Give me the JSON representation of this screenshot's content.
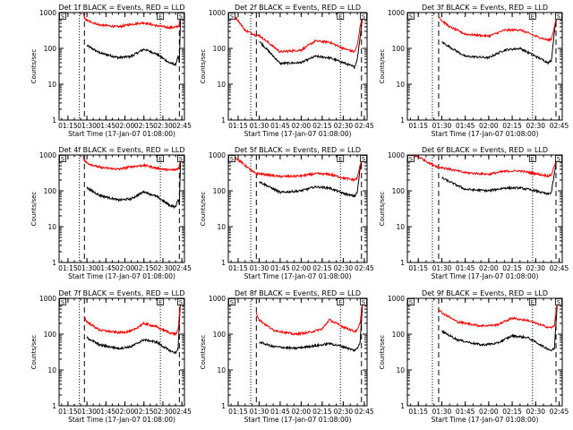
{
  "colors": {
    "events": "#000000",
    "lld": "#ff0000",
    "axis": "#000000",
    "background": "#ffffff"
  },
  "shared": {
    "xlabel": "Start Time (17-Jan-07 01:08:00)",
    "ylabel": "Counts/sec",
    "yscale": "log",
    "ylim": [
      1,
      1000
    ],
    "y_ticks": [
      1,
      10,
      100,
      1000
    ],
    "y_tick_labels": [
      "1",
      "10",
      "100",
      "1000"
    ],
    "xlim": [
      "01:08",
      "02:47"
    ],
    "x_ticks": [
      "01:15",
      "01:30",
      "01:45",
      "02:00",
      "02:15",
      "02:30",
      "02:45"
    ],
    "x_tick_labels": [
      "01:15",
      "01:30",
      "01:45",
      "02:00",
      "02:15",
      "02:30",
      "02:45"
    ],
    "corner_marks": [
      "S",
      "E",
      "S"
    ]
  },
  "chart_data": [
    {
      "type": "line",
      "title": "Det 1f BLACK = Events, RED = LLD",
      "x": [
        "01:27",
        "01:28",
        "01:30",
        "01:40",
        "01:55",
        "02:05",
        "02:15",
        "02:25",
        "02:35",
        "02:40",
        "02:42",
        "02:43",
        "02:44",
        "02:45",
        "02:46"
      ],
      "series": [
        {
          "name": "Events",
          "values": [
            null,
            null,
            120,
            75,
            55,
            60,
            95,
            70,
            40,
            35,
            60,
            40,
            900,
            1000,
            1000
          ]
        },
        {
          "name": "LLD",
          "values": [
            1000,
            700,
            600,
            450,
            400,
            470,
            520,
            430,
            380,
            390,
            420,
            450,
            1000,
            1000,
            1000
          ]
        }
      ],
      "vlines": [
        {
          "x": "01:24",
          "style": "dotted"
        },
        {
          "x": "01:28",
          "style": "dashed"
        },
        {
          "x": "02:28",
          "style": "dotted"
        },
        {
          "x": "02:43",
          "style": "dashed"
        }
      ]
    },
    {
      "type": "line",
      "title": "Det 2f BLACK = Events, RED = LLD",
      "x": [
        "01:10",
        "01:15",
        "01:20",
        "01:28",
        "01:30",
        "01:45",
        "02:00",
        "02:10",
        "02:20",
        "02:30",
        "02:38",
        "02:40",
        "02:42",
        "02:44",
        "02:46"
      ],
      "series": [
        {
          "name": "Events",
          "values": [
            null,
            null,
            null,
            null,
            160,
            38,
            40,
            60,
            55,
            40,
            30,
            50,
            200,
            1000,
            1000
          ]
        },
        {
          "name": "LLD",
          "values": [
            1000,
            600,
            320,
            230,
            230,
            80,
            90,
            160,
            150,
            100,
            80,
            120,
            400,
            1000,
            1000
          ]
        }
      ],
      "vlines": [
        {
          "x": "01:24",
          "style": "dotted"
        },
        {
          "x": "01:28",
          "style": "dashed"
        },
        {
          "x": "02:28",
          "style": "dotted"
        },
        {
          "x": "02:43",
          "style": "dashed"
        }
      ]
    },
    {
      "type": "line",
      "title": "Det 3f BLACK = Events, RED = LLD",
      "x": [
        "01:28",
        "01:30",
        "01:35",
        "01:45",
        "02:00",
        "02:10",
        "02:20",
        "02:30",
        "02:38",
        "02:40",
        "02:42",
        "02:44",
        "02:46"
      ],
      "series": [
        {
          "name": "Events",
          "values": [
            null,
            150,
            110,
            60,
            55,
            90,
            100,
            60,
            40,
            45,
            300,
            1000,
            1000
          ]
        },
        {
          "name": "LLD",
          "values": [
            800,
            600,
            400,
            250,
            220,
            320,
            330,
            220,
            170,
            180,
            400,
            1000,
            1000
          ]
        }
      ],
      "vlines": [
        {
          "x": "01:24",
          "style": "dotted"
        },
        {
          "x": "01:28",
          "style": "dashed"
        },
        {
          "x": "02:28",
          "style": "dotted"
        },
        {
          "x": "02:43",
          "style": "dashed"
        }
      ]
    },
    {
      "type": "line",
      "title": "Det 4f BLACK = Events, RED = LLD",
      "x": [
        "01:27",
        "01:28",
        "01:30",
        "01:40",
        "01:55",
        "02:05",
        "02:15",
        "02:25",
        "02:35",
        "02:40",
        "02:42",
        "02:43",
        "02:44",
        "02:45",
        "02:46"
      ],
      "series": [
        {
          "name": "Events",
          "values": [
            null,
            null,
            120,
            75,
            55,
            60,
            95,
            70,
            40,
            35,
            60,
            40,
            900,
            1000,
            1000
          ]
        },
        {
          "name": "LLD",
          "values": [
            1000,
            700,
            600,
            450,
            400,
            470,
            520,
            430,
            380,
            390,
            420,
            450,
            1000,
            1000,
            1000
          ]
        }
      ],
      "vlines": [
        {
          "x": "01:24",
          "style": "dotted"
        },
        {
          "x": "01:28",
          "style": "dashed"
        },
        {
          "x": "02:28",
          "style": "dotted"
        },
        {
          "x": "02:43",
          "style": "dashed"
        }
      ]
    },
    {
      "type": "line",
      "title": "Det 5f BLACK = Events, RED = LLD",
      "x": [
        "01:08",
        "01:12",
        "01:18",
        "01:25",
        "01:28",
        "01:30",
        "01:45",
        "02:00",
        "02:10",
        "02:20",
        "02:30",
        "02:38",
        "02:40",
        "02:42",
        "02:44",
        "02:46"
      ],
      "series": [
        {
          "name": "Events",
          "values": [
            null,
            null,
            null,
            null,
            null,
            180,
            90,
            100,
            130,
            120,
            85,
            70,
            90,
            400,
            1000,
            1000
          ]
        },
        {
          "name": "LLD",
          "values": [
            700,
            900,
            600,
            350,
            300,
            300,
            250,
            260,
            300,
            290,
            230,
            200,
            230,
            500,
            1000,
            1000
          ]
        }
      ],
      "vlines": [
        {
          "x": "01:24",
          "style": "dotted"
        },
        {
          "x": "01:28",
          "style": "dashed"
        },
        {
          "x": "02:28",
          "style": "dotted"
        },
        {
          "x": "02:43",
          "style": "dashed"
        }
      ]
    },
    {
      "type": "line",
      "title": "Det 6f BLACK = Events, RED = LLD",
      "x": [
        "01:08",
        "01:15",
        "01:22",
        "01:28",
        "01:30",
        "01:45",
        "02:00",
        "02:10",
        "02:20",
        "02:30",
        "02:38",
        "02:40",
        "02:42",
        "02:44",
        "02:46"
      ],
      "series": [
        {
          "name": "Events",
          "values": [
            null,
            null,
            null,
            null,
            230,
            110,
            100,
            120,
            120,
            100,
            80,
            90,
            300,
            1000,
            1000
          ]
        },
        {
          "name": "LLD",
          "values": [
            1000,
            900,
            600,
            450,
            450,
            320,
            290,
            350,
            360,
            300,
            260,
            280,
            500,
            1000,
            1000
          ]
        }
      ],
      "vlines": [
        {
          "x": "01:24",
          "style": "dotted"
        },
        {
          "x": "01:28",
          "style": "dashed"
        },
        {
          "x": "02:28",
          "style": "dotted"
        },
        {
          "x": "02:43",
          "style": "dashed"
        }
      ]
    },
    {
      "type": "line",
      "title": "Det 7f BLACK = Events, RED = LLD",
      "x": [
        "01:28",
        "01:30",
        "01:40",
        "01:55",
        "02:05",
        "02:15",
        "02:25",
        "02:35",
        "02:40",
        "02:42",
        "02:44",
        "02:46"
      ],
      "series": [
        {
          "name": "Events",
          "values": [
            null,
            80,
            50,
            40,
            45,
            70,
            60,
            35,
            30,
            40,
            1000,
            1000
          ]
        },
        {
          "name": "LLD",
          "values": [
            300,
            220,
            130,
            110,
            120,
            200,
            160,
            110,
            100,
            130,
            1000,
            1000
          ]
        }
      ],
      "vlines": [
        {
          "x": "01:24",
          "style": "dotted"
        },
        {
          "x": "01:28",
          "style": "dashed"
        },
        {
          "x": "02:28",
          "style": "dotted"
        },
        {
          "x": "02:43",
          "style": "dashed"
        }
      ]
    },
    {
      "type": "line",
      "title": "Det 8f BLACK = Events, RED = LLD",
      "x": [
        "01:28",
        "01:30",
        "01:40",
        "01:55",
        "02:05",
        "02:15",
        "02:20",
        "02:30",
        "02:38",
        "02:40",
        "02:42",
        "02:44",
        "02:46"
      ],
      "series": [
        {
          "name": "Events",
          "values": [
            null,
            60,
            45,
            40,
            45,
            50,
            55,
            45,
            35,
            40,
            60,
            1000,
            1000
          ]
        },
        {
          "name": "LLD",
          "values": [
            400,
            250,
            130,
            100,
            110,
            140,
            250,
            160,
            120,
            130,
            200,
            1000,
            1000
          ]
        }
      ],
      "vlines": [
        {
          "x": "01:24",
          "style": "dotted"
        },
        {
          "x": "01:28",
          "style": "dashed"
        },
        {
          "x": "02:28",
          "style": "dotted"
        },
        {
          "x": "02:43",
          "style": "dashed"
        }
      ]
    },
    {
      "type": "line",
      "title": "Det 9f BLACK = Events, RED = LLD",
      "x": [
        "01:28",
        "01:30",
        "01:40",
        "01:55",
        "02:05",
        "02:15",
        "02:25",
        "02:35",
        "02:40",
        "02:42",
        "02:44",
        "02:46"
      ],
      "series": [
        {
          "name": "Events",
          "values": [
            null,
            120,
            70,
            50,
            55,
            90,
            80,
            45,
            35,
            40,
            1000,
            1000
          ]
        },
        {
          "name": "LLD",
          "values": [
            500,
            400,
            220,
            170,
            180,
            280,
            240,
            170,
            150,
            170,
            1000,
            1000
          ]
        }
      ],
      "vlines": [
        {
          "x": "01:24",
          "style": "dotted"
        },
        {
          "x": "01:28",
          "style": "dashed"
        },
        {
          "x": "02:28",
          "style": "dotted"
        },
        {
          "x": "02:43",
          "style": "dashed"
        }
      ]
    }
  ]
}
